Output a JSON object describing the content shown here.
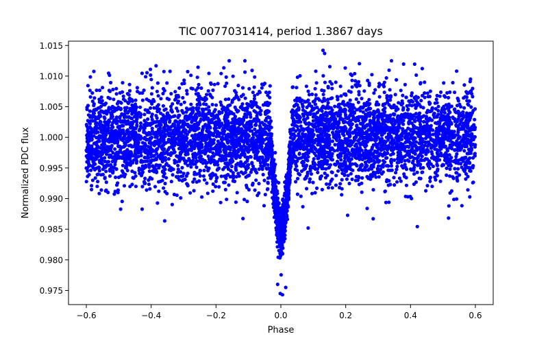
{
  "chart_data": {
    "type": "scatter",
    "title": "TIC 0077031414, period 1.3867 days",
    "xlabel": "Phase",
    "ylabel": "Normalized PDC flux",
    "xlim": [
      -0.655,
      0.655
    ],
    "ylim": [
      0.9727,
      1.0157
    ],
    "x_ticks": [
      -0.6,
      -0.4,
      -0.2,
      0.0,
      0.2,
      0.4,
      0.6
    ],
    "x_tick_labels": [
      "−0.6",
      "−0.4",
      "−0.2",
      "0.0",
      "0.2",
      "0.4",
      "0.6"
    ],
    "y_ticks": [
      0.975,
      0.98,
      0.985,
      0.99,
      0.995,
      1.0,
      1.005,
      1.01,
      1.015
    ],
    "y_tick_labels": [
      "0.975",
      "0.980",
      "0.985",
      "0.990",
      "0.995",
      "1.000",
      "1.005",
      "1.010",
      "1.015"
    ],
    "grid": false,
    "series": [
      {
        "name": "PDC flux",
        "color": "#0000ff",
        "marker": "circle",
        "baseline_flux": 1.0,
        "scatter_sigma": 0.004,
        "phase_range": [
          -0.6,
          0.6
        ],
        "transit": {
          "center_phase": 0.0,
          "half_width_phase": 0.03,
          "depth": 0.0165,
          "min_flux": 0.9742
        },
        "outliers": [
          {
            "x": 0.13,
            "y": 1.0142
          },
          {
            "x": 0.135,
            "y": 1.0137
          },
          {
            "x": 0.005,
            "y": 0.9743
          },
          {
            "x": -0.002,
            "y": 0.9745
          },
          {
            "x": 0.015,
            "y": 0.9755
          },
          {
            "x": -0.01,
            "y": 0.976
          }
        ]
      }
    ]
  }
}
